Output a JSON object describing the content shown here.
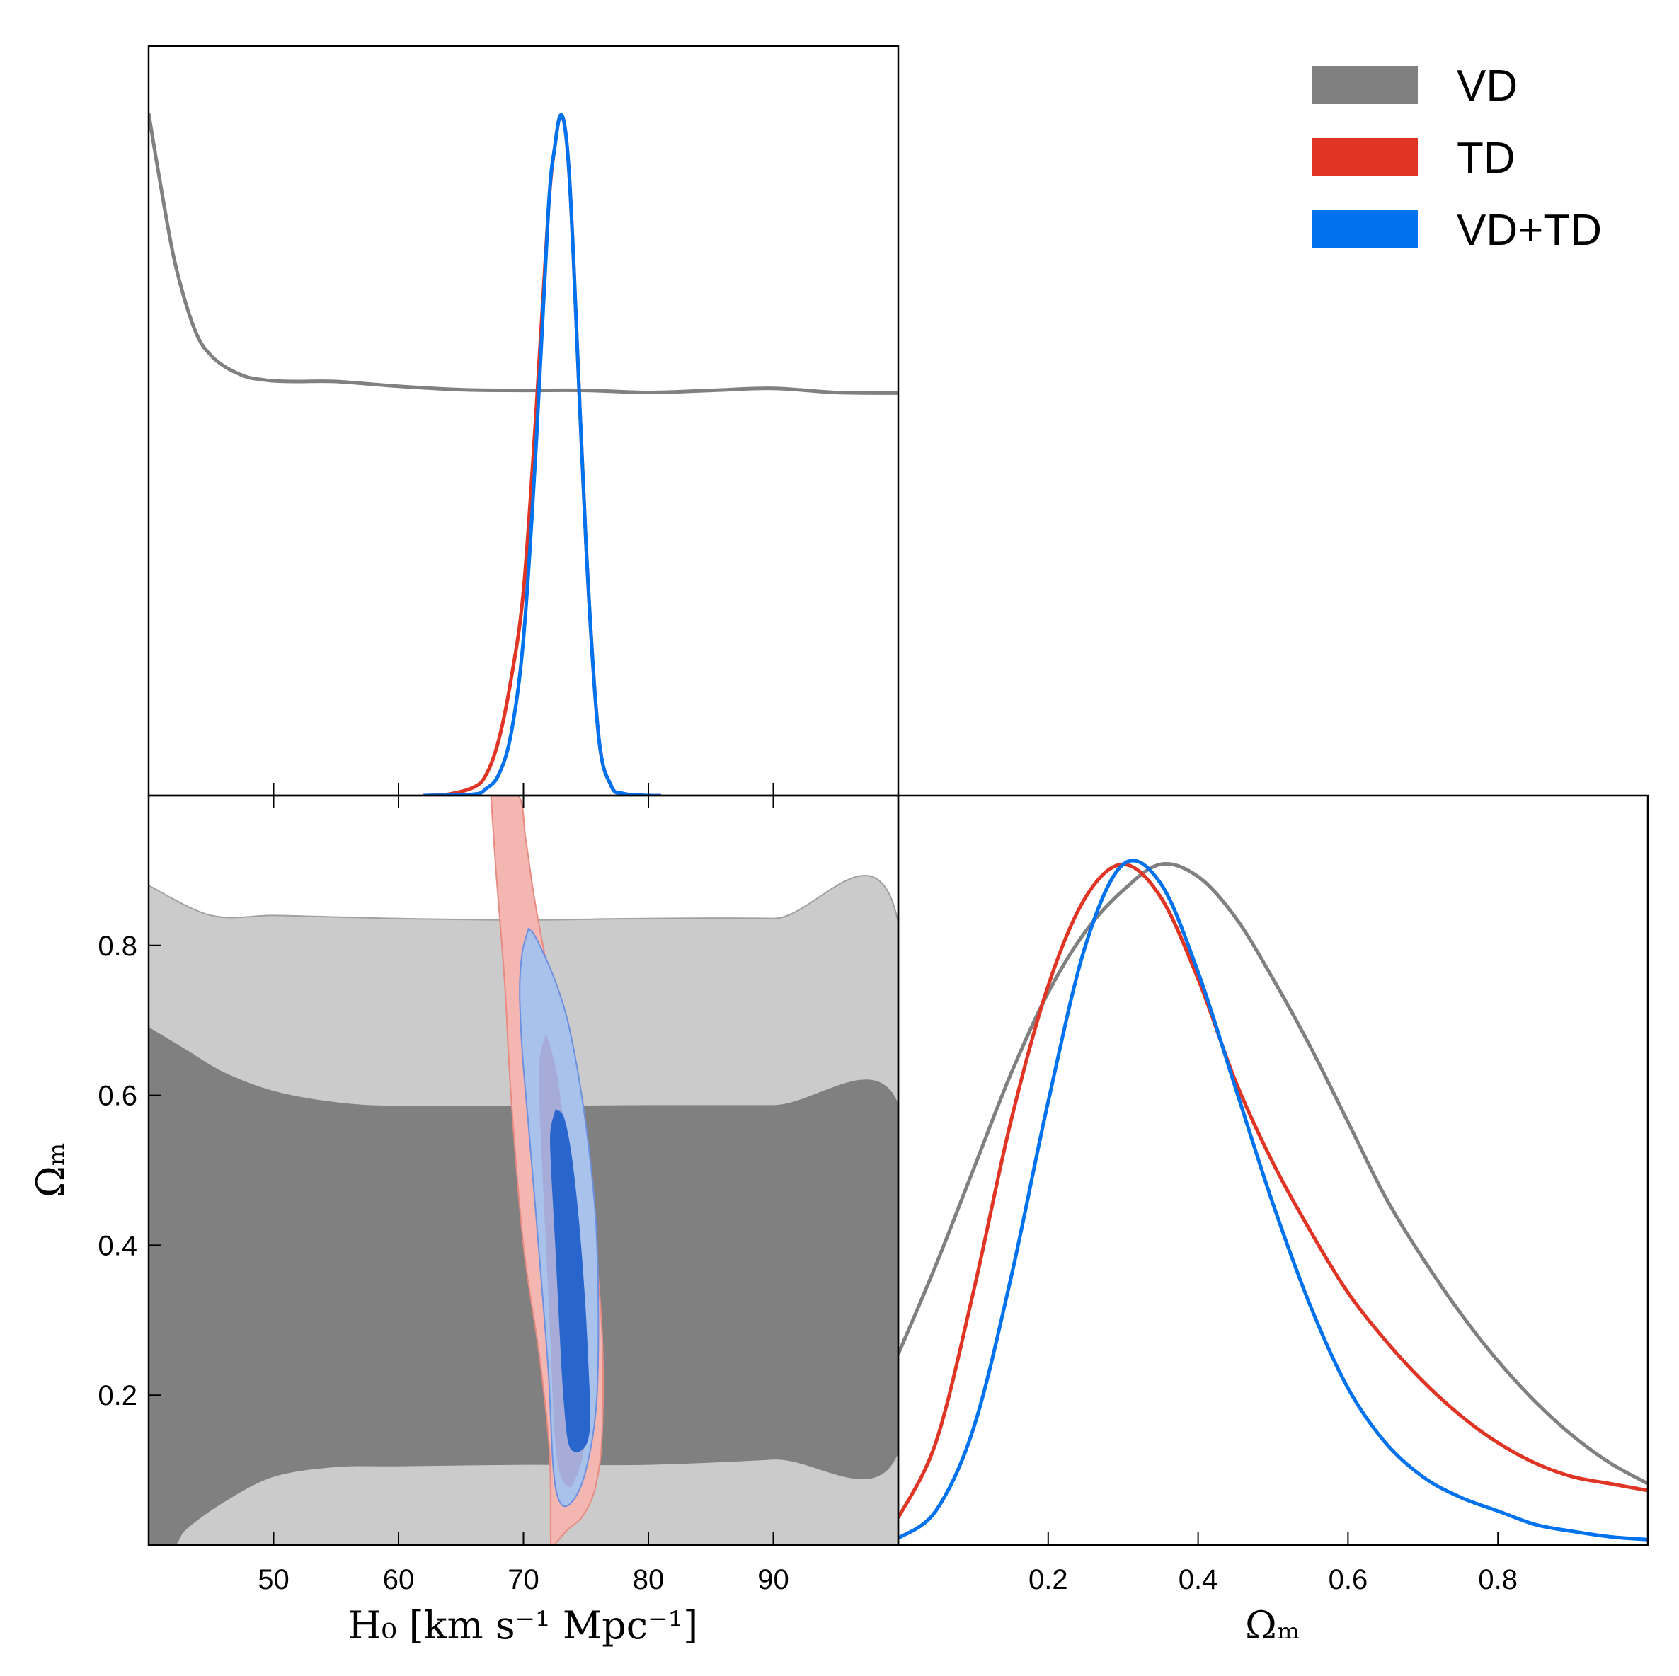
{
  "chart_data": {
    "type": "corner-plot",
    "parameters": [
      "H0",
      "Omega_m"
    ],
    "x_label_h0": "H₀ [km s⁻¹ Mpc⁻¹]",
    "axis_label_omega": "Ωₘ",
    "h0_range": [
      40,
      100
    ],
    "om_range": [
      0.0,
      1.0
    ],
    "h0_ticks": [
      "50",
      "60",
      "70",
      "80",
      "90"
    ],
    "h0_tick_values": [
      50,
      60,
      70,
      80,
      90
    ],
    "om_ticks": [
      "0.2",
      "0.4",
      "0.6",
      "0.8"
    ],
    "om_tick_values": [
      0.2,
      0.4,
      0.6,
      0.8
    ],
    "legend": [
      {
        "label": "VD",
        "color": "#808080"
      },
      {
        "label": "TD",
        "color": "#e03424"
      },
      {
        "label": "VD+TD",
        "color": "#0072ee"
      }
    ],
    "h0_marginal": [
      {
        "name": "VD",
        "color": "#808080",
        "x": [
          40,
          41,
          42,
          43,
          44,
          45,
          46,
          47,
          48,
          49,
          50,
          52,
          55,
          60,
          65,
          70,
          75,
          80,
          85,
          90,
          95,
          100
        ],
        "y": [
          1.0,
          0.89,
          0.79,
          0.72,
          0.67,
          0.645,
          0.63,
          0.62,
          0.613,
          0.61,
          0.608,
          0.607,
          0.607,
          0.6,
          0.595,
          0.594,
          0.594,
          0.591,
          0.594,
          0.597,
          0.591,
          0.59
        ]
      },
      {
        "name": "TD",
        "color": "#e03424",
        "x": [
          62,
          64,
          66,
          67,
          68,
          69,
          70,
          71,
          72,
          72.5,
          73,
          73.5,
          74,
          75,
          76,
          77,
          78,
          80,
          81
        ],
        "y": [
          0.0,
          0.002,
          0.012,
          0.03,
          0.08,
          0.17,
          0.3,
          0.56,
          0.86,
          0.95,
          0.998,
          0.95,
          0.79,
          0.37,
          0.09,
          0.015,
          0.003,
          0.0,
          0.0
        ]
      },
      {
        "name": "VD+TD",
        "color": "#0072ee",
        "x": [
          62,
          66,
          67,
          68,
          69,
          70,
          71,
          72,
          72.5,
          73,
          73.5,
          74,
          75,
          76,
          77,
          78,
          80,
          81
        ],
        "y": [
          0.0,
          0.002,
          0.01,
          0.03,
          0.09,
          0.23,
          0.51,
          0.86,
          0.95,
          0.998,
          0.95,
          0.79,
          0.37,
          0.09,
          0.015,
          0.003,
          0.0,
          0.0
        ]
      }
    ],
    "om_marginal": [
      {
        "name": "VD",
        "color": "#808080",
        "x": [
          0.0,
          0.05,
          0.1,
          0.15,
          0.2,
          0.25,
          0.3,
          0.35,
          0.4,
          0.45,
          0.5,
          0.55,
          0.6,
          0.65,
          0.7,
          0.75,
          0.8,
          0.85,
          0.9,
          0.95,
          1.0
        ],
        "y": [
          0.28,
          0.41,
          0.55,
          0.69,
          0.81,
          0.9,
          0.96,
          0.998,
          0.98,
          0.92,
          0.83,
          0.73,
          0.62,
          0.51,
          0.42,
          0.34,
          0.27,
          0.21,
          0.16,
          0.12,
          0.09
        ]
      },
      {
        "name": "TD",
        "color": "#e03424",
        "x": [
          0.0,
          0.05,
          0.1,
          0.15,
          0.2,
          0.25,
          0.3,
          0.35,
          0.4,
          0.45,
          0.5,
          0.55,
          0.6,
          0.65,
          0.7,
          0.75,
          0.8,
          0.85,
          0.9,
          0.95,
          1.0
        ],
        "y": [
          0.04,
          0.15,
          0.37,
          0.62,
          0.82,
          0.95,
          0.998,
          0.95,
          0.83,
          0.68,
          0.56,
          0.46,
          0.37,
          0.3,
          0.24,
          0.19,
          0.15,
          0.12,
          0.1,
          0.09,
          0.08
        ]
      },
      {
        "name": "VD+TD",
        "color": "#0072ee",
        "x": [
          0.0,
          0.05,
          0.1,
          0.15,
          0.2,
          0.25,
          0.3,
          0.35,
          0.4,
          0.45,
          0.5,
          0.55,
          0.6,
          0.65,
          0.7,
          0.75,
          0.8,
          0.85,
          0.9,
          0.95,
          1.0
        ],
        "y": [
          0.01,
          0.05,
          0.17,
          0.39,
          0.65,
          0.88,
          0.998,
          0.97,
          0.84,
          0.67,
          0.5,
          0.35,
          0.23,
          0.15,
          0.1,
          0.07,
          0.05,
          0.03,
          0.02,
          0.012,
          0.008
        ]
      }
    ],
    "contours_2d": [
      {
        "name": "VD 95%",
        "fill": "#cbcbcb",
        "stroke": "#a0a0a0",
        "x": [
          40,
          45,
          50,
          55,
          60,
          70,
          80,
          90,
          100,
          100,
          90,
          80,
          70,
          60,
          55,
          50,
          45,
          42,
          40
        ],
        "y": [
          0.88,
          0.84,
          0.84,
          0.838,
          0.836,
          0.834,
          0.836,
          0.836,
          0.83,
          0.0,
          0.0,
          0.0,
          0.0,
          0.0,
          0.0,
          0.0,
          0.0,
          0.0,
          0.0
        ]
      },
      {
        "name": "VD 68%",
        "fill": "#808080",
        "stroke": "#808080",
        "x": [
          40,
          43,
          46,
          50,
          55,
          60,
          70,
          80,
          90,
          100,
          100,
          90,
          80,
          70,
          60,
          55,
          50,
          46,
          43,
          42,
          40
        ],
        "y": [
          0.69,
          0.66,
          0.63,
          0.605,
          0.59,
          0.585,
          0.585,
          0.586,
          0.586,
          0.586,
          0.126,
          0.115,
          0.108,
          0.108,
          0.106,
          0.105,
          0.092,
          0.058,
          0.022,
          0.0,
          0.0
        ]
      },
      {
        "name": "TD 95%",
        "fill": "#f3b6b0",
        "stroke": "#e88a82",
        "x": [
          67.4,
          69.6,
          70.2,
          71.0,
          72.5,
          74.5,
          75.6,
          76.3,
          76.3,
          75.8,
          74.8,
          73.5,
          72.6,
          72.2,
          72.1,
          71.3,
          70.0,
          69.0,
          68.5,
          67.8,
          67.4
        ],
        "y": [
          1.0,
          1.0,
          0.94,
          0.85,
          0.72,
          0.55,
          0.42,
          0.28,
          0.15,
          0.08,
          0.04,
          0.02,
          0.003,
          0.0,
          0.12,
          0.25,
          0.4,
          0.6,
          0.75,
          0.9,
          1.0
        ]
      },
      {
        "name": "VD+TD 95%",
        "fill": "#a8c2ec",
        "stroke": "#6d8fe0",
        "x": [
          70.4,
          71.0,
          72.6,
          73.8,
          75.0,
          75.8,
          76.0,
          75.8,
          75.0,
          74.0,
          73.0,
          72.4,
          72.0,
          71.2,
          70.4,
          69.9,
          69.7,
          69.9,
          70.4
        ],
        "y": [
          0.822,
          0.81,
          0.75,
          0.68,
          0.56,
          0.43,
          0.29,
          0.18,
          0.1,
          0.06,
          0.055,
          0.1,
          0.23,
          0.4,
          0.56,
          0.66,
          0.74,
          0.79,
          0.822
        ]
      },
      {
        "name": "TD 68%",
        "fill": "#a6abd7",
        "stroke": "#a6abd7",
        "x": [
          71.8,
          72.6,
          73.5,
          74.5,
          75.0,
          74.8,
          74.0,
          73.5,
          72.9,
          72.5,
          72.2,
          71.8,
          71.4,
          71.3,
          71.8
        ],
        "y": [
          0.68,
          0.63,
          0.52,
          0.38,
          0.22,
          0.13,
          0.085,
          0.08,
          0.1,
          0.16,
          0.28,
          0.42,
          0.56,
          0.64,
          0.68
        ]
      },
      {
        "name": "VD+TD 68%",
        "fill": "#2866cd",
        "stroke": "#2866cd",
        "x": [
          72.6,
          73.2,
          73.8,
          74.4,
          74.9,
          75.2,
          75.3,
          75.0,
          74.2,
          73.6,
          73.2,
          72.9,
          72.6,
          72.3,
          72.2,
          72.6
        ],
        "y": [
          0.58,
          0.57,
          0.52,
          0.43,
          0.32,
          0.22,
          0.165,
          0.135,
          0.125,
          0.14,
          0.21,
          0.3,
          0.4,
          0.49,
          0.55,
          0.58
        ]
      }
    ]
  }
}
